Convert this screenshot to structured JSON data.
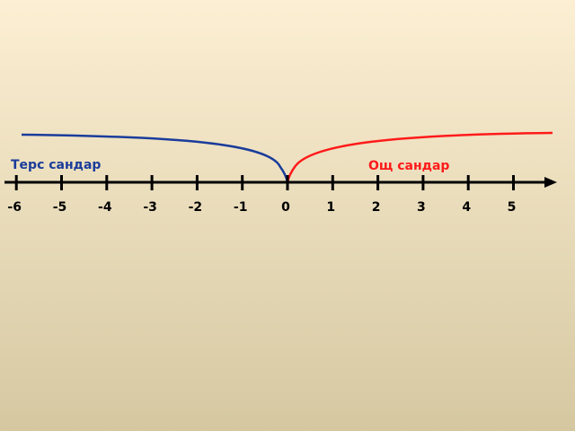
{
  "labels": {
    "negative": "Терс сандар",
    "positive": "Ощ сандар"
  },
  "ticks": [
    -6,
    -5,
    -4,
    -3,
    -2,
    -1,
    0,
    1,
    2,
    3,
    4,
    5
  ]
}
